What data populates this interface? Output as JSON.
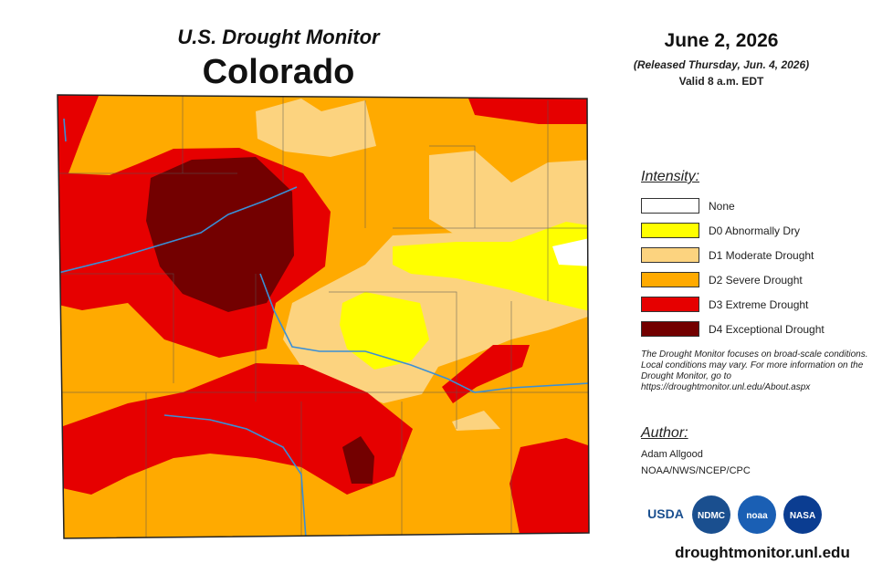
{
  "header": {
    "title": "U.S. Drought Monitor",
    "state": "Colorado"
  },
  "date": {
    "date": "June 2, 2026",
    "released": "(Released Thursday, Jun. 4, 2026)",
    "valid": "Valid 8 a.m. EDT"
  },
  "legend": {
    "title": "Intensity:",
    "items": [
      {
        "label": "None",
        "color": "#ffffff"
      },
      {
        "label": "D0 Abnormally Dry",
        "color": "#ffff00"
      },
      {
        "label": "D1 Moderate Drought",
        "color": "#fcd37f"
      },
      {
        "label": "D2 Severe Drought",
        "color": "#ffaa00"
      },
      {
        "label": "D3 Extreme Drought",
        "color": "#e60000"
      },
      {
        "label": "D4 Exceptional Drought",
        "color": "#730000"
      }
    ]
  },
  "note": "The Drought Monitor focuses on broad-scale conditions. Local conditions may vary. For more information on the Drought Monitor, go to https://droughtmonitor.unl.edu/About.aspx",
  "author": {
    "title": "Author:",
    "name": "Adam Allgood",
    "org": "NOAA/NWS/NCEP/CPC"
  },
  "logos": [
    "USDA",
    "NDMC",
    "noaa",
    "NASA"
  ],
  "url": "droughtmonitor.unl.edu"
}
